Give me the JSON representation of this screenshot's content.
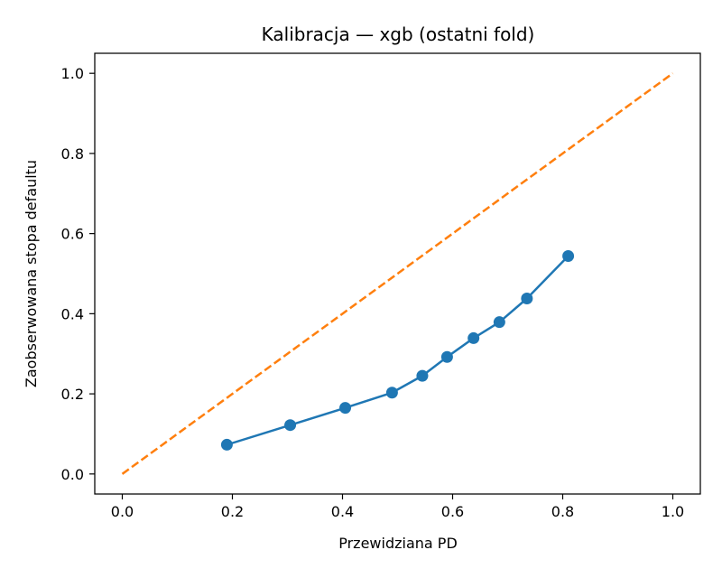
{
  "chart_data": {
    "type": "line",
    "title": "Kalibracja — xgb (ostatni fold)",
    "xlabel": "Przewidziana PD",
    "ylabel": "Zaobserwowana stopa defaultu",
    "xlim": [
      -0.05,
      1.05
    ],
    "ylim": [
      -0.05,
      1.05
    ],
    "xticks": [
      "0.0",
      "0.2",
      "0.4",
      "0.6",
      "0.8",
      "1.0"
    ],
    "yticks": [
      "0.0",
      "0.2",
      "0.4",
      "0.6",
      "0.8",
      "1.0"
    ],
    "grid": false,
    "series": [
      {
        "style": "solid-markers",
        "color": "#1f77b4",
        "x": [
          0.19,
          0.305,
          0.405,
          0.49,
          0.545,
          0.59,
          0.638,
          0.685,
          0.735,
          0.81
        ],
        "y": [
          0.073,
          0.122,
          0.165,
          0.203,
          0.245,
          0.292,
          0.339,
          0.379,
          0.438,
          0.544
        ]
      },
      {
        "style": "dashed",
        "color": "#ff7f0e",
        "x": [
          0.0,
          1.0
        ],
        "y": [
          0.0,
          1.0
        ]
      }
    ]
  }
}
